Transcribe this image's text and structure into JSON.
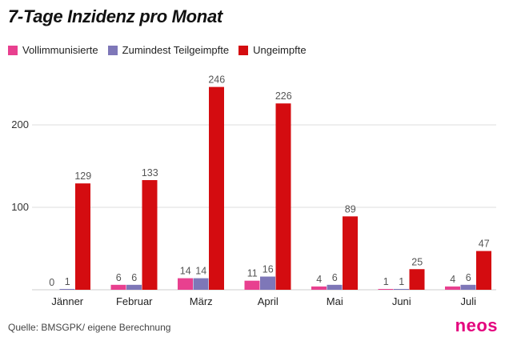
{
  "colors": {
    "series_vollimmun": "#e8408f",
    "series_teil": "#7e77b8",
    "series_ungeimpft": "#d40c10"
  },
  "source": "Quelle: BMSGPK/ eigene Berechnung",
  "logo_text": "neos",
  "chart_data": {
    "type": "bar",
    "title": "7-Tage Inzidenz pro Monat",
    "xlabel": "",
    "ylabel": "",
    "ylim": [
      0,
      260
    ],
    "yticks": [
      100,
      200
    ],
    "ytick_labels": [
      "100",
      "200"
    ],
    "grid": true,
    "legend_position": "top-left",
    "categories": [
      "Jänner",
      "Februar",
      "März",
      "April",
      "Mai",
      "Juni",
      "Juli"
    ],
    "series": [
      {
        "name": "Vollimmunisierte",
        "values": [
          0,
          6,
          14,
          11,
          4,
          1,
          4
        ],
        "color": "#e8408f"
      },
      {
        "name": "Zumindest Teilgeimpfte",
        "values": [
          1,
          6,
          14,
          16,
          6,
          1,
          6
        ],
        "color": "#7e77b8"
      },
      {
        "name": "Ungeimpfte",
        "values": [
          129,
          133,
          246,
          226,
          89,
          25,
          47
        ],
        "color": "#d40c10"
      }
    ],
    "data_labels": [
      [
        "0",
        "6",
        "14",
        "11",
        "4",
        "1",
        "4"
      ],
      [
        "1",
        "6",
        "14",
        "16",
        "6",
        "1",
        "6"
      ],
      [
        "129",
        "133",
        "246",
        "226",
        "89",
        "25",
        "47"
      ]
    ]
  }
}
